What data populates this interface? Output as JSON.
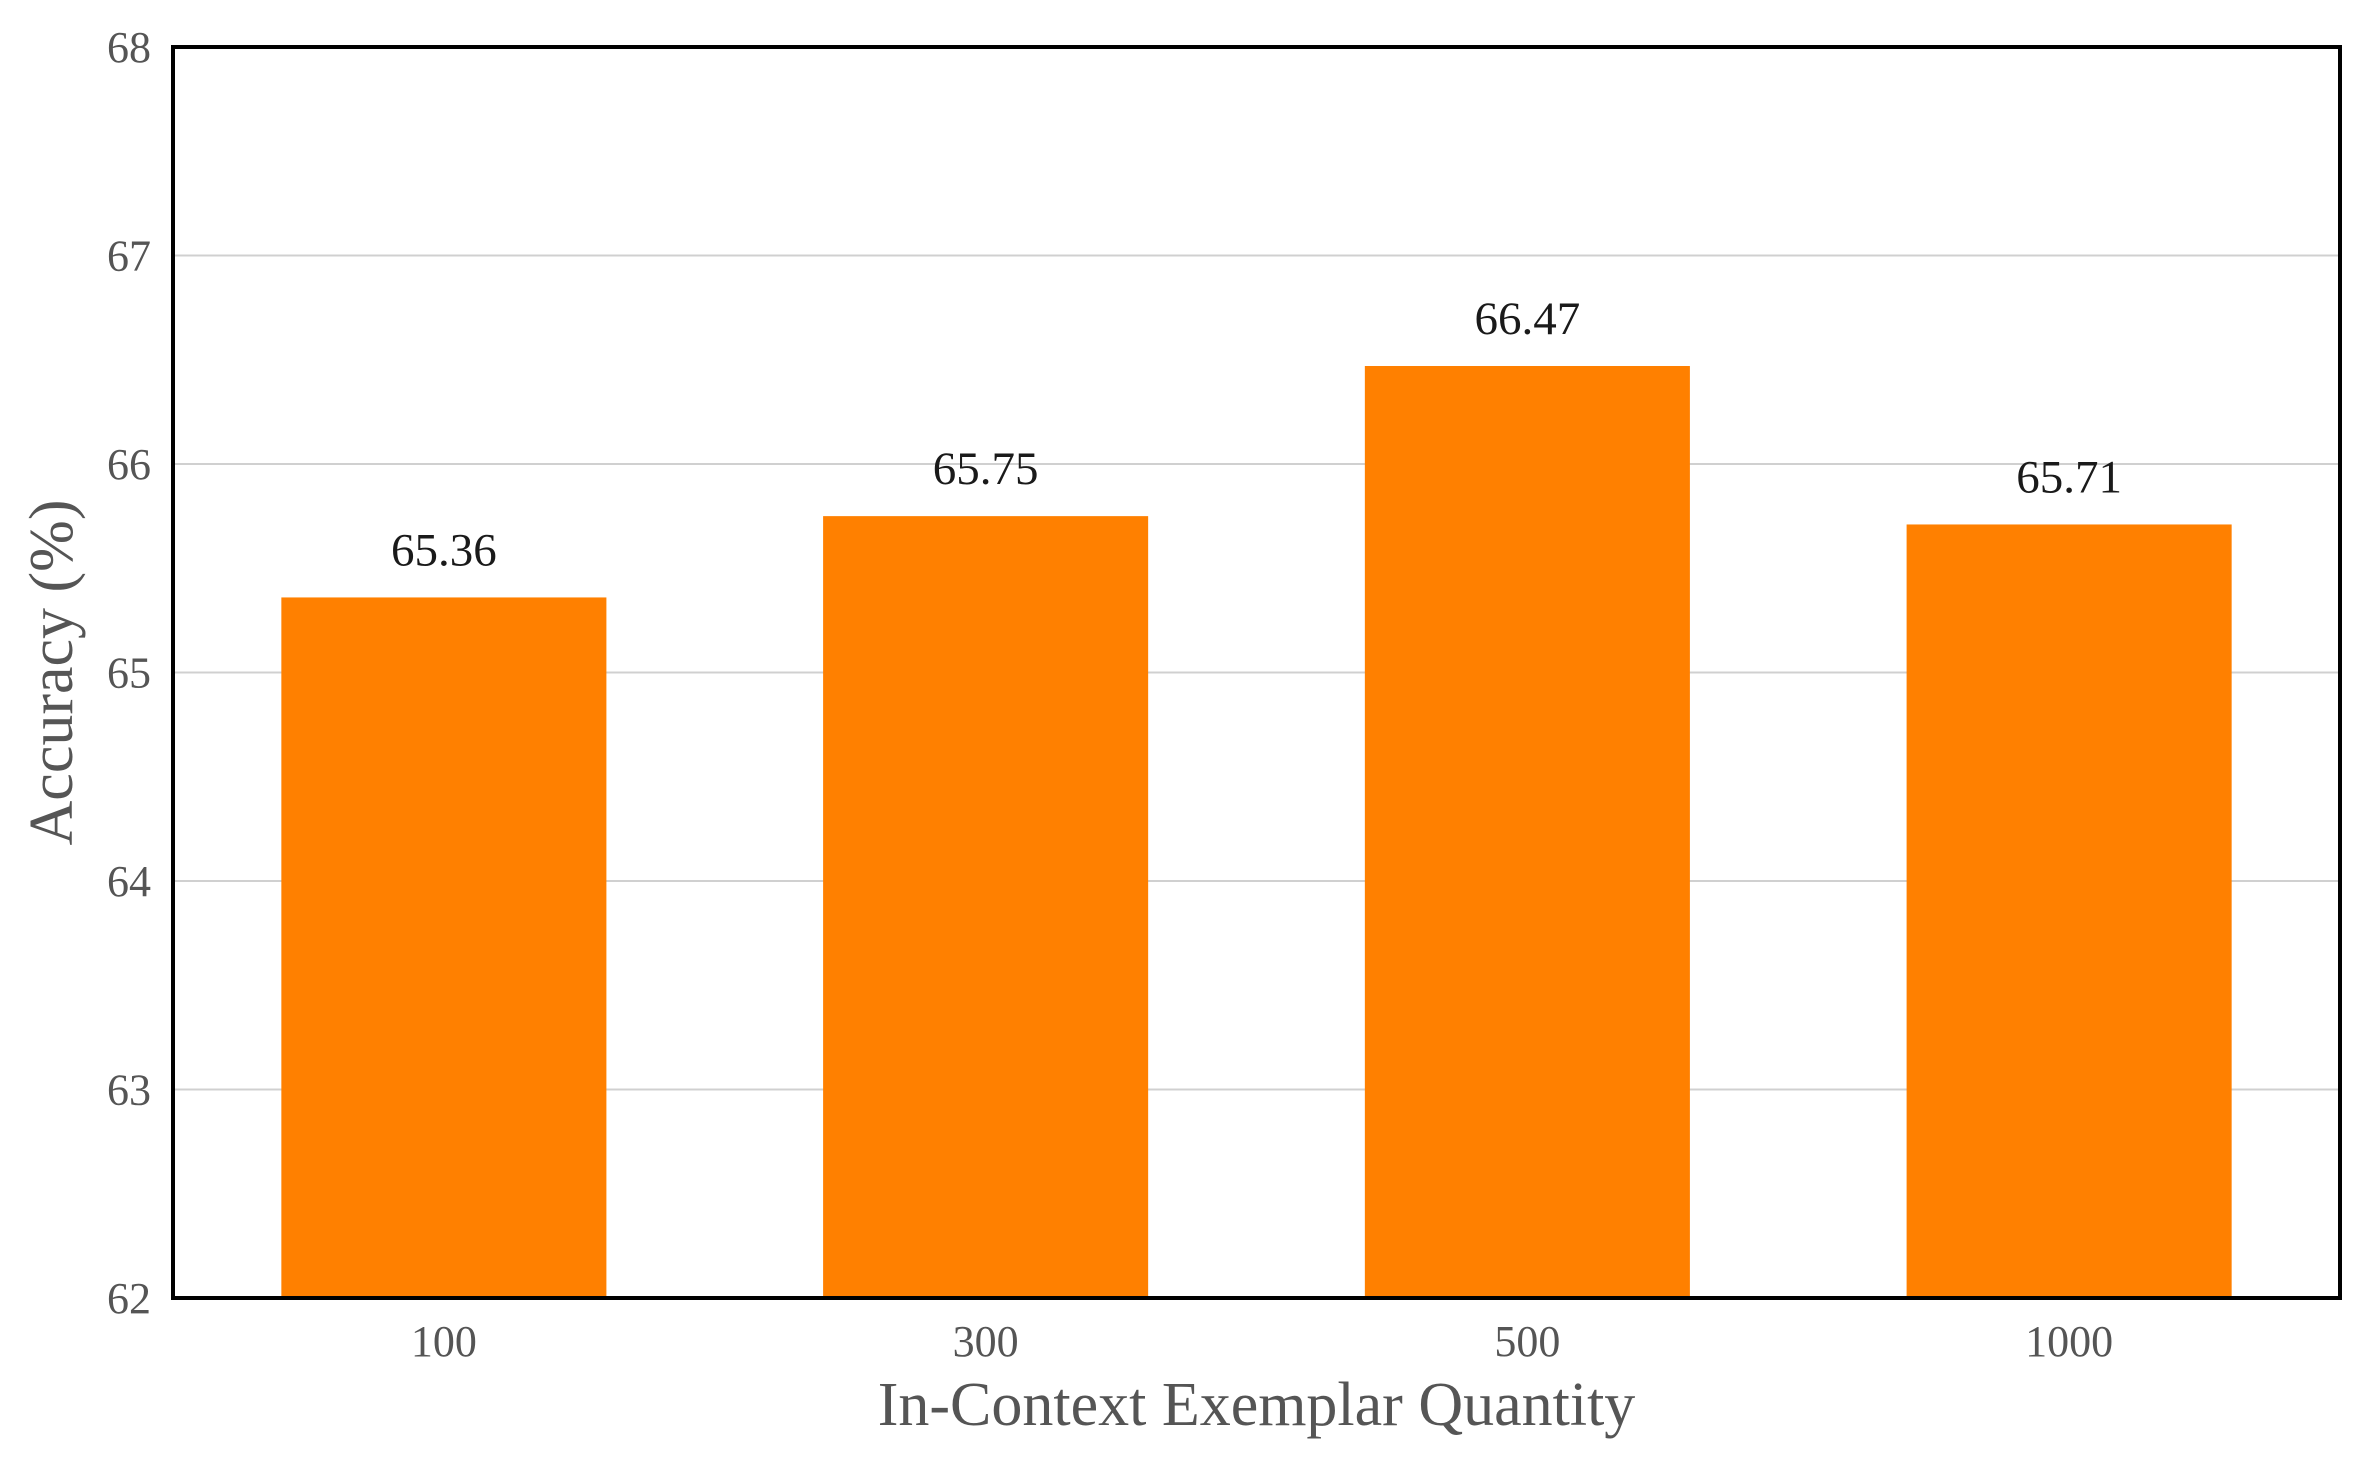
{
  "chart_data": {
    "type": "bar",
    "categories": [
      "100",
      "300",
      "500",
      "1000"
    ],
    "values": [
      65.36,
      65.75,
      66.47,
      65.71
    ],
    "value_labels": [
      "65.36",
      "65.75",
      "66.47",
      "65.71"
    ],
    "title": "",
    "xlabel": "In-Context Exemplar Quantity",
    "ylabel": "Accuracy (%)",
    "ylim": [
      62,
      68
    ],
    "yticks": [
      "62",
      "63",
      "64",
      "65",
      "66",
      "67",
      "68"
    ],
    "grid": "horizontal",
    "legend": "none",
    "bar_color": "#ff8000"
  }
}
